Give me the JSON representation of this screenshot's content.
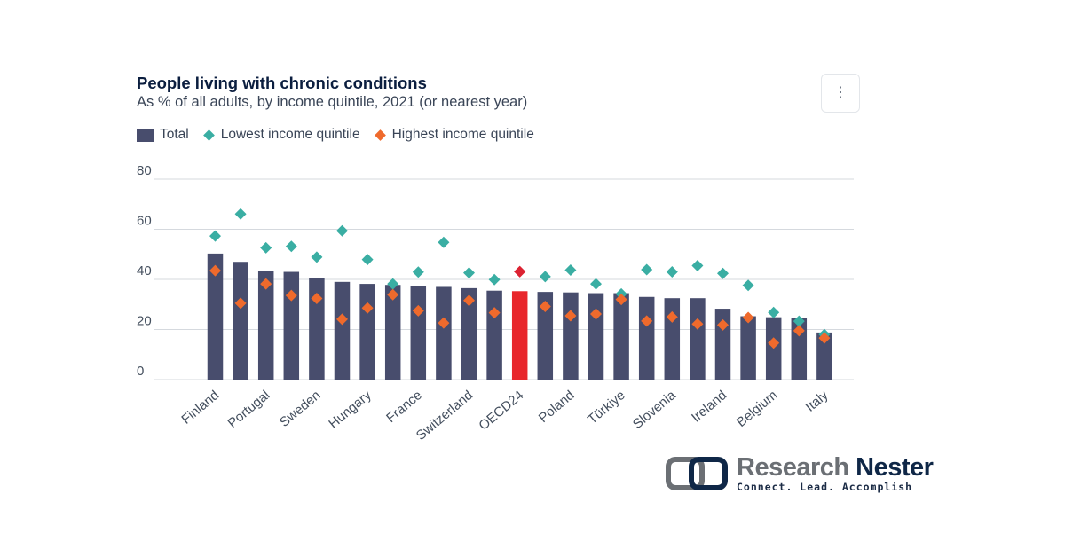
{
  "header": {
    "title": "People living with chronic conditions",
    "subtitle": "As % of all adults, by income quintile, 2021 (or nearest year)",
    "menu_icon": "⋮"
  },
  "legend": [
    {
      "label": "Total",
      "color": "#484d6d",
      "shape": "bar"
    },
    {
      "label": "Lowest income quintile",
      "color": "#3aaea3",
      "shape": "diamond"
    },
    {
      "label": "Highest income quintile",
      "color": "#ef6a2c",
      "shape": "diamond"
    }
  ],
  "colors": {
    "bar": "#484d6d",
    "highlight_bar": "#e8262b",
    "highlight_marker": "#dc2332",
    "lowest": "#3aaea3",
    "highest": "#ef6a2c",
    "grid": "#d5d9de"
  },
  "chart_data": {
    "type": "bar",
    "title": "People living with chronic conditions",
    "subtitle": "As % of all adults, by income quintile, 2021 (or nearest year)",
    "ylim": [
      0,
      80
    ],
    "yticks": [
      0,
      20,
      40,
      60,
      80
    ],
    "grid": true,
    "legend_position": "top-left",
    "highlight_index": 12,
    "categories": [
      "Finland",
      "",
      "Portugal",
      "",
      "Sweden",
      "",
      "Hungary",
      "",
      "France",
      "",
      "Switzerland",
      "",
      "OECD24",
      "",
      "Poland",
      "",
      "Türkiye",
      "",
      "Slovenia",
      "",
      "Ireland",
      "",
      "Belgium",
      "",
      "Italy"
    ],
    "series": [
      {
        "name": "Total",
        "values": [
          50.3,
          47.0,
          43.5,
          43.0,
          40.5,
          39.0,
          38.2,
          37.8,
          37.5,
          37.0,
          36.5,
          35.5,
          35.3,
          35.0,
          34.8,
          34.5,
          34.5,
          33.0,
          32.5,
          32.5,
          28.3,
          25.3,
          24.9,
          24.5,
          18.8
        ]
      },
      {
        "name": "Lowest income quintile",
        "values": [
          57.3,
          66.1,
          52.6,
          53.2,
          48.9,
          59.4,
          47.9,
          38.2,
          42.9,
          54.8,
          42.6,
          39.9,
          43.1,
          41.1,
          43.7,
          38.2,
          34.2,
          43.9,
          43.0,
          45.5,
          42.4,
          37.6,
          26.8,
          23.3,
          18.0
        ]
      },
      {
        "name": "Highest income quintile",
        "values": [
          43.5,
          30.5,
          38.2,
          33.6,
          32.4,
          24.1,
          28.6,
          33.9,
          27.5,
          22.6,
          31.6,
          26.7,
          43.1,
          29.2,
          25.5,
          26.2,
          32.0,
          23.4,
          25.0,
          22.2,
          21.8,
          24.8,
          14.6,
          19.5,
          16.6
        ]
      }
    ]
  },
  "watermark": {
    "brand_light": "Research",
    "brand_bold": "Nester",
    "tagline": "Connect. Lead. Accomplish"
  }
}
